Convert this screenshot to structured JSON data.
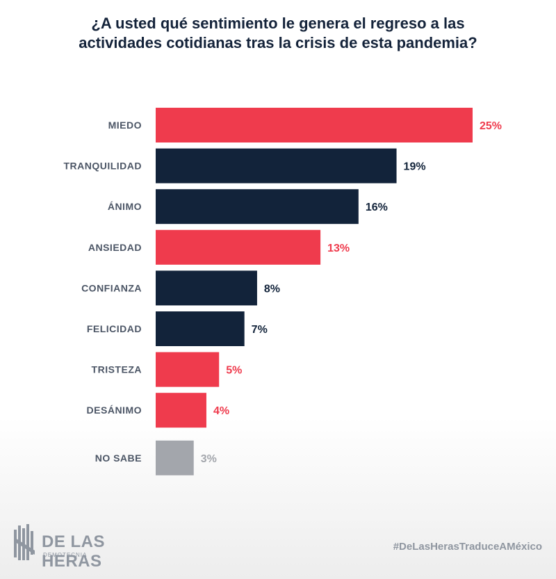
{
  "title_lines": [
    "¿A usted qué sentimiento le genera el regreso a las",
    "actividades cotidianas tras la crisis de esta pandemia?"
  ],
  "colors": {
    "red": "#ef3b4d",
    "navy": "#12233a",
    "gray": "#a3a6ac",
    "label": "#4b5565"
  },
  "chart_data": {
    "type": "bar",
    "orientation": "horizontal",
    "title": "¿A usted qué sentimiento le genera el regreso a las actividades cotidianas tras la crisis de esta pandemia?",
    "categories": [
      "MIEDO",
      "TRANQUILIDAD",
      "ÁNIMO",
      "ANSIEDAD",
      "CONFIANZA",
      "FELICIDAD",
      "TRISTEZA",
      "DESÁNIMO",
      "NO SABE"
    ],
    "values": [
      25,
      19,
      16,
      13,
      8,
      7,
      5,
      4,
      3
    ],
    "value_labels": [
      "25%",
      "19%",
      "16%",
      "13%",
      "8%",
      "7%",
      "5%",
      "4%",
      "3%"
    ],
    "bar_colors": [
      "red",
      "navy",
      "navy",
      "red",
      "navy",
      "navy",
      "red",
      "red",
      "gray"
    ],
    "xlim": [
      0,
      25
    ],
    "grid": false,
    "xlabel": "",
    "ylabel": ""
  },
  "footer": {
    "logo_name": "DE LAS HERAS",
    "logo_sub": "DEMOTECNIA",
    "hashtag": "#DeLasHerasTraduceAMéxico"
  }
}
